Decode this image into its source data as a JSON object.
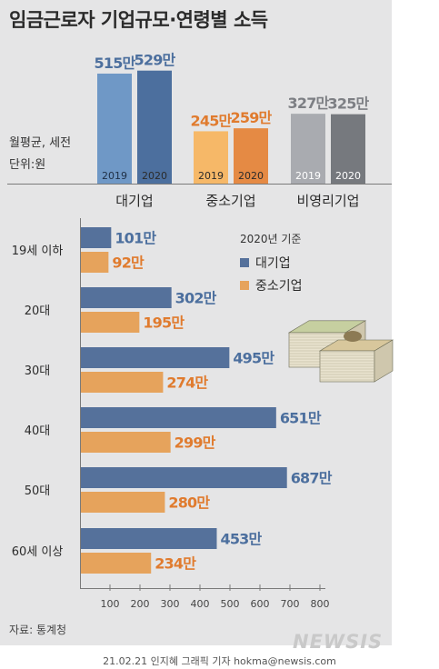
{
  "title": "임금근로자 기업규모·연령별 소득",
  "unit_line1": "월평균, 세전",
  "unit_line2": "단위:원",
  "source": "자료: 통계청",
  "credit": "21.02.21 인지혜 그래픽 기자 hokma@newsis.com",
  "logo": "NEWSIS",
  "colors": {
    "panel": "#e5e5e6",
    "large_2019": "#6f98c6",
    "large_2020": "#4c6f9e",
    "sme_2019": "#f6b868",
    "sme_2020": "#e58a44",
    "nonprofit_2019": "#a9abb0",
    "nonprofit_2020": "#76797e",
    "large_bar": "#55719b",
    "sme_bar": "#e6a35c",
    "large_text": "#4c6f9e",
    "sme_text": "#e07b2e"
  },
  "chart_data": [
    {
      "type": "bar",
      "categories": [
        "대기업",
        "중소기업",
        "비영리기업"
      ],
      "series": [
        {
          "name": "2019",
          "values": [
            515,
            245,
            327
          ],
          "labels": [
            "515만",
            "245만",
            "327만"
          ]
        },
        {
          "name": "2020",
          "values": [
            529,
            259,
            325
          ],
          "labels": [
            "529만",
            "259만",
            "325만"
          ]
        }
      ]
    },
    {
      "type": "bar",
      "orientation": "horizontal",
      "legend_title": "2020년 기준",
      "categories": [
        "19세 이하",
        "20대",
        "30대",
        "40대",
        "50대",
        "60세 이상"
      ],
      "series": [
        {
          "name": "대기업",
          "values": [
            101,
            302,
            495,
            651,
            687,
            453
          ],
          "labels": [
            "101만",
            "302만",
            "495만",
            "651만",
            "687만",
            "453만"
          ]
        },
        {
          "name": "중소기업",
          "values": [
            92,
            195,
            274,
            299,
            280,
            234
          ],
          "labels": [
            "92만",
            "195만",
            "274만",
            "299만",
            "280만",
            "234만"
          ]
        }
      ],
      "xticks": [
        "100",
        "200",
        "300",
        "400",
        "500",
        "600",
        "700",
        "800"
      ],
      "xlim": [
        0,
        800
      ]
    }
  ]
}
